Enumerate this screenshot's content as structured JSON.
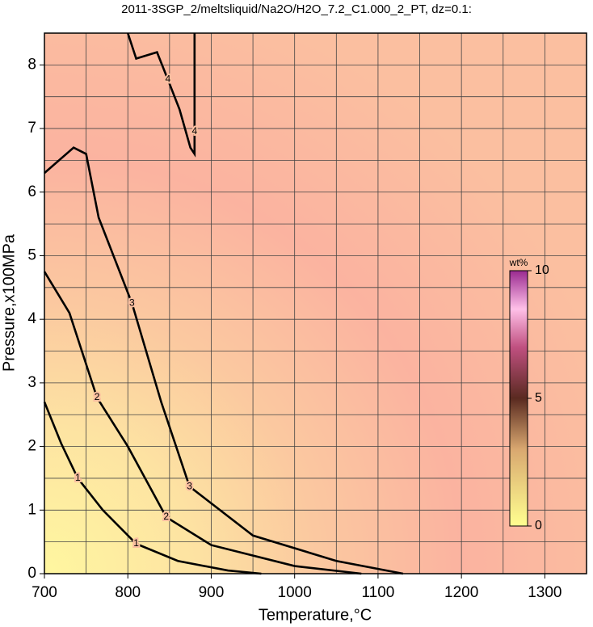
{
  "chart_data": {
    "type": "contour",
    "title": "2011-3SGP_2/meltsliquid/Na2O/H2O_7.2_C1.000_2_PT, dz=0.1:",
    "xlabel": "Temperature,°C",
    "ylabel": "Pressure,x100MPa",
    "xlim": [
      700,
      1350
    ],
    "ylim": [
      0,
      8.5
    ],
    "xticks": [
      700,
      800,
      900,
      1000,
      1100,
      1200,
      1300
    ],
    "yticks": [
      0,
      1,
      2,
      3,
      4,
      5,
      6,
      7,
      8
    ],
    "xminorticks": [
      750,
      850,
      950,
      1050,
      1150,
      1250
    ],
    "yminorticks": [
      0.5,
      1.5,
      2.5,
      3.5,
      4.5,
      5.5,
      6.5,
      7.5
    ],
    "grid": true,
    "contours": [
      {
        "level": 1,
        "x": [
          700,
          720,
          740,
          770,
          810,
          860,
          920,
          960
        ],
        "y": [
          2.7,
          2.05,
          1.5,
          1.0,
          0.47,
          0.2,
          0.05,
          0
        ]
      },
      {
        "level": 2,
        "x": [
          700,
          730,
          763,
          800,
          846,
          900,
          1000,
          1080
        ],
        "y": [
          4.75,
          4.1,
          2.77,
          2.0,
          0.89,
          0.45,
          0.12,
          0
        ]
      },
      {
        "level": 3,
        "x": [
          700,
          735,
          750,
          765,
          805,
          840,
          874,
          950,
          1050,
          1130
        ],
        "y": [
          6.3,
          6.7,
          6.6,
          5.6,
          4.25,
          2.7,
          1.37,
          0.6,
          0.2,
          0
        ]
      },
      {
        "level": 4,
        "x": [
          800,
          810,
          835,
          848,
          862,
          875,
          880,
          880,
          880
        ],
        "y": [
          8.5,
          8.1,
          8.2,
          7.77,
          7.3,
          6.7,
          6.6,
          6.95,
          8.5
        ]
      }
    ],
    "colorbar": {
      "label": "wt%",
      "lim": [
        0,
        10
      ],
      "ticks": [
        0,
        5,
        10
      ]
    }
  }
}
